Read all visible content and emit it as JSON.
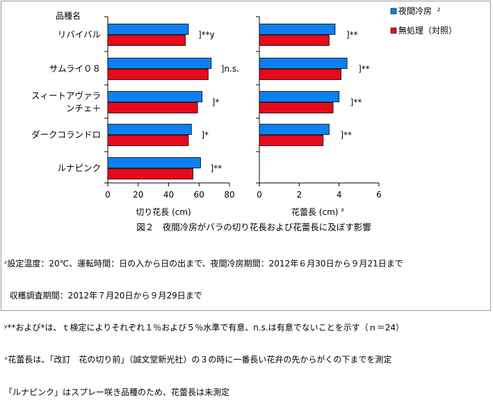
{
  "chart_data": [
    {
      "type": "bar",
      "orientation": "horizontal",
      "title": "",
      "xlabel": "切り花長 (cm)",
      "ylabel": "品種名",
      "xlim": [
        0,
        80
      ],
      "xticks": [
        "0",
        "20",
        "40",
        "60",
        "80"
      ],
      "categories": [
        "リバイバル",
        "サムライ０８",
        "スィートアヴァランチェ＋",
        "ダークコランドロ",
        "ルナピンク"
      ],
      "category_lines": [
        [
          "リバイバル"
        ],
        [
          "サムライ０８"
        ],
        [
          "スィートアヴァラ",
          "ンチェ＋"
        ],
        [
          "ダークコランドロ"
        ],
        [
          "ルナピンク"
        ]
      ],
      "series": [
        {
          "name": "夜間冷房",
          "color": "#0d7ff2",
          "values": [
            53,
            68,
            62,
            55,
            61
          ]
        },
        {
          "name": "無処理（対照）",
          "color": "#e8091a",
          "values": [
            51,
            66,
            59,
            53,
            56
          ]
        }
      ],
      "significance": [
        "]**y",
        "]n.s.",
        "]*",
        "]*",
        "]**"
      ]
    },
    {
      "type": "bar",
      "orientation": "horizontal",
      "title": "",
      "xlabel": "花蕾長 (cm) x",
      "ylabel": "",
      "xlim": [
        0,
        6
      ],
      "xticks": [
        "0",
        "2",
        "4",
        "6"
      ],
      "categories": [
        "リバイバル",
        "サムライ０８",
        "スィートアヴァランチェ＋",
        "ダークコランドロ",
        "ルナピンク"
      ],
      "series": [
        {
          "name": "夜間冷房",
          "color": "#0d7ff2",
          "values": [
            3.8,
            4.4,
            4.0,
            3.5,
            null
          ]
        },
        {
          "name": "無処理（対照）",
          "color": "#e8091a",
          "values": [
            3.5,
            4.1,
            3.7,
            3.2,
            null
          ]
        }
      ],
      "significance": [
        "]**",
        "]**",
        "]**",
        "]**",
        ""
      ]
    }
  ],
  "legend": {
    "items": [
      {
        "label": "夜間冷房",
        "sup": "z",
        "color": "#0d7ff2"
      },
      {
        "label": "無処理（対照）",
        "sup": "",
        "color": "#e8091a"
      }
    ]
  },
  "figure_caption": "図２　夜間冷房がバラの切り花長および花蕾長に及ぼす影響",
  "notes": [
    "ᶻ設定温度：20℃、運転時間：日の入から日の出まで、夜間冷房期間：2012年６月30日から９月21日まで",
    "  収穫調査期間：2012年７月20日から９月29日まで",
    "ʸ**および*は、ｔ検定によりそれぞれ１％および５％水準で有意、n.s.は有意でないことを示す（ｎ＝24）",
    "ˣ花蕾長は、「改訂　花の切り前」（誠文堂新光社）の３の時に一番長い花弁の先からがくの下までを測定",
    "「ルナピンク」はスプレー咲き品種のため、花蕾長は未測定"
  ]
}
